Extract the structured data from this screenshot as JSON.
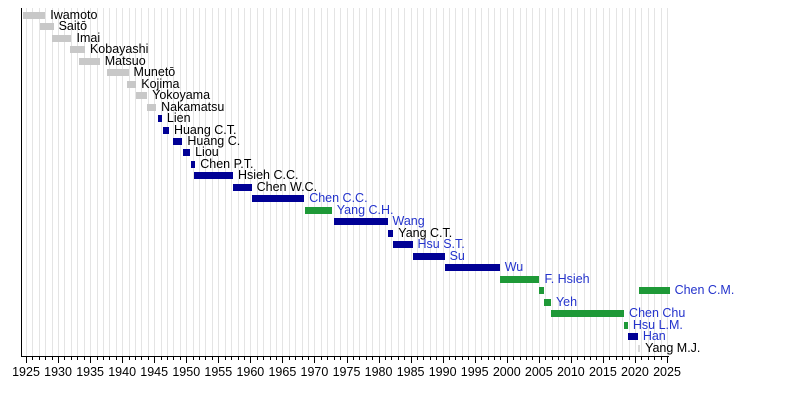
{
  "chart_data": {
    "type": "gantt",
    "subtype": "mayoral-term-timeline",
    "grid": true,
    "legend_position": "none",
    "axis": {
      "unit": "year",
      "min": 1925,
      "max": 2025,
      "major_tick_step": 5,
      "minor_tick_step": 1,
      "tick_labels": [
        "1925",
        "1930",
        "1935",
        "1940",
        "1945",
        "1950",
        "1955",
        "1960",
        "1965",
        "1970",
        "1975",
        "1980",
        "1985",
        "1990",
        "1995",
        "2000",
        "2005",
        "2010",
        "2015",
        "2020",
        "2025"
      ]
    },
    "colors": {
      "gray": "#c8c8c8",
      "lightgray": "#d8d8d8",
      "navy": "#000095",
      "green": "#1e9937",
      "link_text": "#2433cc",
      "plain_text": "#000000",
      "gridline": "#e4e4e4",
      "axis": "#000000"
    },
    "rows": [
      {
        "name": "Iwamoto",
        "party": "gray",
        "linked": false,
        "terms": [
          [
            1924.6,
            1928.0
          ]
        ]
      },
      {
        "name": "Saitō",
        "party": "gray",
        "linked": false,
        "terms": [
          [
            1927.2,
            1929.3
          ]
        ]
      },
      {
        "name": "Imai",
        "party": "gray",
        "linked": false,
        "terms": [
          [
            1929.0,
            1932.1
          ]
        ]
      },
      {
        "name": "Kobayashi",
        "party": "gray",
        "linked": false,
        "terms": [
          [
            1931.9,
            1934.2
          ]
        ]
      },
      {
        "name": "Matsuo",
        "party": "gray",
        "linked": false,
        "terms": [
          [
            1933.2,
            1936.5
          ]
        ]
      },
      {
        "name": "Munetō",
        "party": "gray",
        "linked": false,
        "terms": [
          [
            1937.7,
            1941.0
          ]
        ]
      },
      {
        "name": "Kojima",
        "party": "gray",
        "linked": false,
        "terms": [
          [
            1940.8,
            1942.2
          ]
        ]
      },
      {
        "name": "Yokoyama",
        "party": "gray",
        "linked": false,
        "terms": [
          [
            1942.2,
            1943.9
          ]
        ]
      },
      {
        "name": "Nakamatsu",
        "party": "gray",
        "linked": false,
        "terms": [
          [
            1943.9,
            1945.3
          ]
        ]
      },
      {
        "name": "Lien",
        "party": "navy",
        "linked": false,
        "terms": [
          [
            1945.6,
            1946.2
          ]
        ]
      },
      {
        "name": "Huang C.T.",
        "party": "navy",
        "linked": false,
        "terms": [
          [
            1946.4,
            1947.3
          ]
        ]
      },
      {
        "name": "Huang C.",
        "party": "navy",
        "linked": false,
        "terms": [
          [
            1947.9,
            1949.4
          ]
        ]
      },
      {
        "name": "Liou",
        "party": "navy",
        "linked": false,
        "terms": [
          [
            1949.5,
            1950.6
          ]
        ]
      },
      {
        "name": "Chen P.T.",
        "party": "navy",
        "linked": false,
        "terms": [
          [
            1950.7,
            1951.4
          ]
        ]
      },
      {
        "name": "Hsieh C.C.",
        "party": "navy",
        "linked": false,
        "terms": [
          [
            1951.2,
            1957.3
          ]
        ]
      },
      {
        "name": "Chen W.C.",
        "party": "navy",
        "linked": false,
        "terms": [
          [
            1957.3,
            1960.2
          ]
        ]
      },
      {
        "name": "Chen C.C.",
        "party": "navy",
        "linked": true,
        "terms": [
          [
            1960.3,
            1968.4
          ]
        ]
      },
      {
        "name": "Yang C.H.",
        "party": "green",
        "linked": true,
        "terms": [
          [
            1968.5,
            1972.7
          ]
        ]
      },
      {
        "name": "Wang",
        "party": "navy",
        "linked": true,
        "terms": [
          [
            1973.0,
            1981.4
          ]
        ]
      },
      {
        "name": "Yang C.T.",
        "party": "navy",
        "linked": false,
        "terms": [
          [
            1981.4,
            1982.3
          ]
        ]
      },
      {
        "name": "Hsu S.T.",
        "party": "navy",
        "linked": true,
        "terms": [
          [
            1982.3,
            1985.3
          ]
        ]
      },
      {
        "name": "Su",
        "party": "navy",
        "linked": true,
        "terms": [
          [
            1985.4,
            1990.3
          ]
        ]
      },
      {
        "name": "Wu",
        "party": "navy",
        "linked": true,
        "terms": [
          [
            1990.4,
            1998.9
          ]
        ]
      },
      {
        "name": "F. Hsieh",
        "party": "green",
        "linked": true,
        "terms": [
          [
            1998.9,
            2005.1
          ]
        ]
      },
      {
        "name": "Chen C.M.",
        "party": "green",
        "linked": true,
        "terms": [
          [
            2005.1,
            2005.75
          ],
          [
            2020.6,
            2025.4
          ]
        ]
      },
      {
        "name": "Yeh",
        "party": "green",
        "linked": true,
        "terms": [
          [
            2005.75,
            2006.9
          ]
        ]
      },
      {
        "name": "Chen Chu",
        "party": "green",
        "linked": true,
        "terms": [
          [
            2006.9,
            2018.3
          ]
        ]
      },
      {
        "name": "Hsu L.M.",
        "party": "green",
        "linked": true,
        "terms": [
          [
            2018.3,
            2018.9
          ]
        ]
      },
      {
        "name": "Han",
        "party": "navy",
        "linked": true,
        "terms": [
          [
            2018.9,
            2020.45
          ]
        ]
      },
      {
        "name": "Yang M.J.",
        "party": "lightgray",
        "linked": false,
        "terms": [
          [
            2020.45,
            2020.8
          ]
        ]
      }
    ]
  }
}
